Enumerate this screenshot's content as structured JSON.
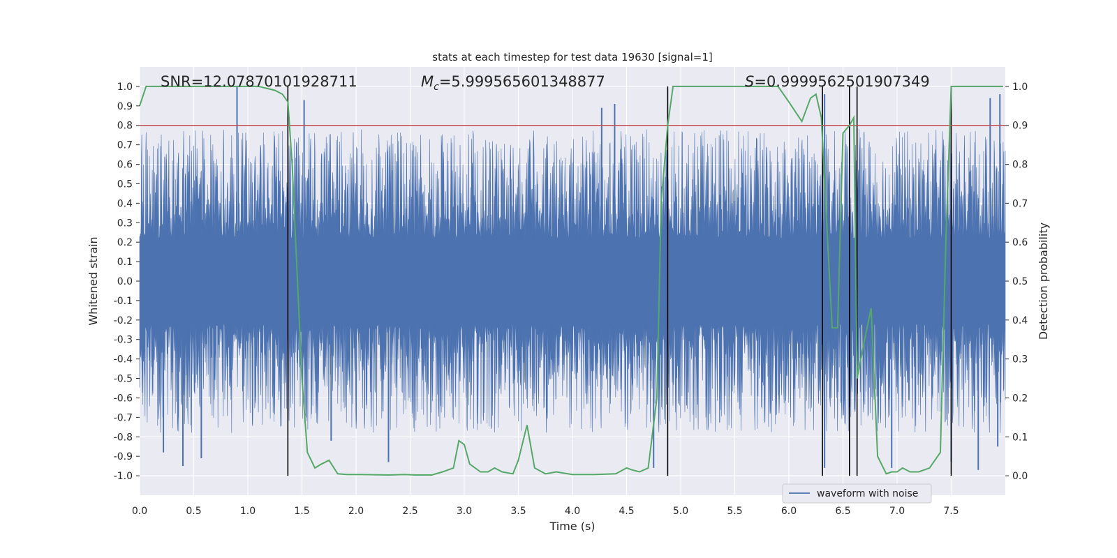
{
  "chart_data": {
    "type": "line",
    "title": "stats at each timestep for test data 19630 [signal=1]",
    "xlabel": "Time (s)",
    "ylabel": "Whitened strain",
    "y2label": "Detection probability",
    "xlim": [
      0.0,
      8.0
    ],
    "ylim": [
      -1.1,
      1.1
    ],
    "y2lim": [
      -0.05,
      1.05
    ],
    "x_ticks": [
      0.0,
      0.5,
      1.0,
      1.5,
      2.0,
      2.5,
      3.0,
      3.5,
      4.0,
      4.5,
      5.0,
      5.5,
      6.0,
      6.5,
      7.0,
      7.5
    ],
    "x_tick_labels": [
      "0.0",
      "0.5",
      "1.0",
      "1.5",
      "2.0",
      "2.5",
      "3.0",
      "3.5",
      "4.0",
      "4.5",
      "5.0",
      "5.5",
      "6.0",
      "6.5",
      "7.0",
      "7.5"
    ],
    "y_ticks": [
      -1.0,
      -0.9,
      -0.8,
      -0.7,
      -0.6,
      -0.5,
      -0.4,
      -0.3,
      -0.2,
      -0.1,
      0.0,
      0.1,
      0.2,
      0.3,
      0.4,
      0.5,
      0.6,
      0.7,
      0.8,
      0.9,
      1.0
    ],
    "y_tick_labels": [
      "-1.0",
      "-0.9",
      "-0.8",
      "-0.7",
      "-0.6",
      "-0.5",
      "-0.4",
      "-0.3",
      "-0.2",
      "-0.1",
      "0.0",
      "0.1",
      "0.2",
      "0.3",
      "0.4",
      "0.5",
      "0.6",
      "0.7",
      "0.8",
      "0.9",
      "1.0"
    ],
    "y2_ticks": [
      0.0,
      0.1,
      0.2,
      0.3,
      0.4,
      0.5,
      0.6,
      0.7,
      0.8,
      0.9,
      1.0
    ],
    "y2_tick_labels": [
      "0.0",
      "0.1",
      "0.2",
      "0.3",
      "0.4",
      "0.5",
      "0.6",
      "0.7",
      "0.8",
      "0.9",
      "1.0"
    ],
    "annotations": {
      "snr": "SNR=12.07870101928711",
      "mc_symbol": "M",
      "mc_subscript": "c",
      "mc_value": "=5.999565601348877",
      "s_symbol": "S",
      "s_value": "=0.9999562501907349"
    },
    "threshold": {
      "value": 0.9,
      "axis": "y2",
      "color": "#c44e52"
    },
    "vertical_lines": [
      1.37,
      4.88,
      6.31,
      6.56,
      6.63,
      7.5
    ],
    "waveform": {
      "name": "waveform with noise",
      "color": "#4c72b0",
      "core_amplitude": 0.22,
      "envelope_max": 0.78,
      "spikes_up": [
        [
          0.9,
          1.0
        ],
        [
          1.52,
          0.93
        ],
        [
          4.27,
          0.89
        ],
        [
          4.39,
          0.91
        ],
        [
          6.33,
          0.96
        ],
        [
          7.95,
          0.96
        ],
        [
          7.86,
          0.94
        ]
      ],
      "spikes_down": [
        [
          0.22,
          -0.88
        ],
        [
          0.4,
          -0.95
        ],
        [
          0.57,
          -0.91
        ],
        [
          1.77,
          -0.82
        ],
        [
          2.3,
          -0.93
        ],
        [
          4.75,
          -0.96
        ],
        [
          6.33,
          -0.96
        ],
        [
          6.95,
          -0.96
        ],
        [
          7.5,
          -0.93
        ],
        [
          7.75,
          -0.97
        ],
        [
          7.93,
          -0.85
        ]
      ]
    },
    "probability": {
      "name": "detection probability",
      "color": "#55a868",
      "x": [
        0.0,
        0.06,
        0.15,
        0.3,
        0.5,
        0.7,
        0.9,
        1.1,
        1.25,
        1.32,
        1.37,
        1.41,
        1.45,
        1.5,
        1.55,
        1.62,
        1.68,
        1.75,
        1.83,
        1.92,
        2.05,
        2.3,
        2.45,
        2.55,
        2.7,
        2.8,
        2.9,
        2.95,
        3.0,
        3.05,
        3.15,
        3.22,
        3.28,
        3.35,
        3.45,
        3.5,
        3.58,
        3.65,
        3.75,
        3.85,
        4.0,
        4.2,
        4.4,
        4.5,
        4.55,
        4.62,
        4.7,
        4.78,
        4.82,
        4.88,
        4.93,
        5.1,
        5.4,
        5.6,
        5.9,
        6.0,
        6.12,
        6.2,
        6.25,
        6.3,
        6.34,
        6.4,
        6.45,
        6.5,
        6.56,
        6.6,
        6.63,
        6.7,
        6.76,
        6.82,
        6.9,
        6.95,
        7.0,
        7.05,
        7.12,
        7.2,
        7.3,
        7.4,
        7.45,
        7.5,
        7.55,
        7.6,
        7.7,
        7.8,
        7.9,
        7.98
      ],
      "y": [
        0.95,
        1.0,
        1.0,
        1.0,
        1.0,
        1.0,
        1.0,
        1.0,
        0.99,
        0.98,
        0.96,
        0.8,
        0.55,
        0.25,
        0.06,
        0.02,
        0.03,
        0.04,
        0.005,
        0.003,
        0.003,
        0.002,
        0.003,
        0.002,
        0.002,
        0.01,
        0.02,
        0.09,
        0.08,
        0.03,
        0.01,
        0.01,
        0.02,
        0.01,
        0.005,
        0.04,
        0.13,
        0.02,
        0.005,
        0.01,
        0.003,
        0.003,
        0.005,
        0.02,
        0.015,
        0.01,
        0.02,
        0.2,
        0.7,
        0.9,
        1.0,
        1.0,
        1.0,
        1.0,
        1.0,
        0.96,
        0.91,
        0.97,
        0.98,
        0.92,
        0.7,
        0.38,
        0.38,
        0.88,
        0.9,
        0.92,
        0.25,
        0.35,
        0.43,
        0.05,
        0.005,
        0.01,
        0.01,
        0.02,
        0.01,
        0.01,
        0.02,
        0.06,
        0.6,
        1.0,
        1.0,
        1.0,
        1.0,
        1.0,
        1.0,
        1.0
      ]
    }
  }
}
